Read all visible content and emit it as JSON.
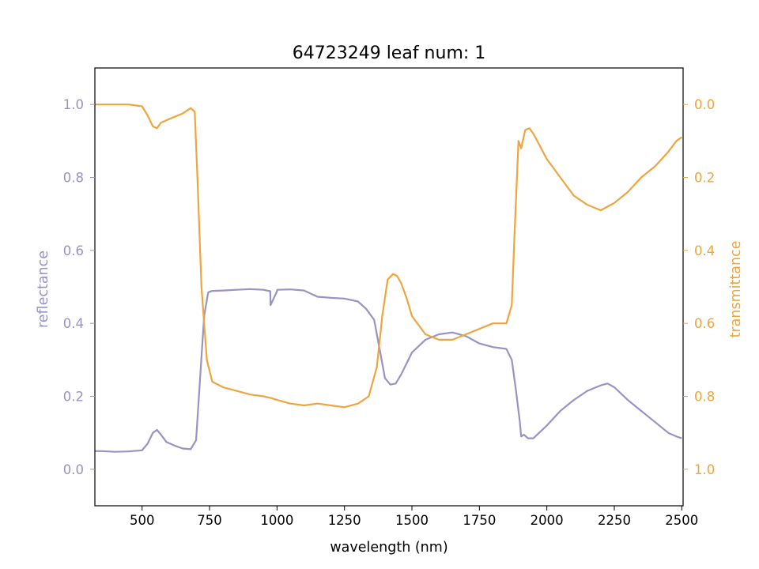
{
  "chart_data": {
    "type": "line",
    "title": "64723249 leaf num: 1",
    "xlabel": "wavelength (nm)",
    "ylabel_left": "reflectance",
    "ylabel_right": "transmittance",
    "xlim": [
      325,
      2505
    ],
    "ylim_left": [
      -0.1,
      1.1
    ],
    "ylim_right": [
      1.1,
      -0.1
    ],
    "right_axis_inverted": true,
    "grid": false,
    "x_ticks": [
      500,
      750,
      1000,
      1250,
      1500,
      1750,
      2000,
      2250,
      2500
    ],
    "y_ticks_left": [
      "0.0",
      "0.2",
      "0.4",
      "0.6",
      "0.8",
      "1.0"
    ],
    "y_ticks_right": [
      "0.0",
      "0.2",
      "0.4",
      "0.6",
      "0.8",
      "1.0"
    ],
    "colors": {
      "reflectance": "#9893c5",
      "transmittance": "#eda53f",
      "axis": "#000000"
    },
    "series": [
      {
        "axis": "left",
        "x": [
          325,
          350,
          400,
          450,
          500,
          520,
          540,
          555,
          570,
          590,
          620,
          650,
          680,
          700,
          715,
          730,
          745,
          760,
          800,
          850,
          900,
          950,
          975,
          976,
          1000,
          1001,
          1050,
          1100,
          1150,
          1200,
          1250,
          1300,
          1330,
          1360,
          1380,
          1400,
          1420,
          1440,
          1460,
          1480,
          1500,
          1550,
          1600,
          1650,
          1700,
          1750,
          1800,
          1850,
          1870,
          1885,
          1900,
          1905,
          1915,
          1930,
          1950,
          2000,
          2050,
          2100,
          2150,
          2200,
          2225,
          2250,
          2300,
          2350,
          2400,
          2450,
          2480,
          2500
        ],
        "y": [
          0.05,
          0.05,
          0.048,
          0.049,
          0.052,
          0.07,
          0.1,
          0.108,
          0.095,
          0.075,
          0.065,
          0.057,
          0.055,
          0.08,
          0.25,
          0.42,
          0.485,
          0.489,
          0.49,
          0.492,
          0.494,
          0.492,
          0.488,
          0.45,
          0.488,
          0.492,
          0.493,
          0.49,
          0.473,
          0.47,
          0.468,
          0.46,
          0.44,
          0.41,
          0.33,
          0.25,
          0.232,
          0.235,
          0.26,
          0.29,
          0.32,
          0.355,
          0.37,
          0.375,
          0.365,
          0.345,
          0.335,
          0.33,
          0.3,
          0.22,
          0.13,
          0.09,
          0.095,
          0.085,
          0.085,
          0.12,
          0.16,
          0.19,
          0.215,
          0.23,
          0.235,
          0.225,
          0.19,
          0.16,
          0.13,
          0.1,
          0.09,
          0.085
        ]
      },
      {
        "axis": "right",
        "x": [
          325,
          350,
          400,
          450,
          500,
          520,
          540,
          555,
          570,
          600,
          650,
          680,
          695,
          705,
          720,
          740,
          760,
          800,
          850,
          900,
          950,
          980,
          1000,
          1050,
          1100,
          1150,
          1200,
          1250,
          1300,
          1340,
          1370,
          1390,
          1410,
          1430,
          1445,
          1460,
          1480,
          1500,
          1550,
          1600,
          1650,
          1700,
          1750,
          1800,
          1850,
          1870,
          1880,
          1895,
          1905,
          1920,
          1935,
          1950,
          2000,
          2050,
          2100,
          2150,
          2200,
          2225,
          2250,
          2300,
          2350,
          2400,
          2450,
          2480,
          2500
        ],
        "y": [
          0.0,
          0.0,
          0.0,
          0.0,
          0.005,
          0.03,
          0.06,
          0.065,
          0.05,
          0.04,
          0.025,
          0.01,
          0.02,
          0.2,
          0.5,
          0.7,
          0.76,
          0.775,
          0.785,
          0.795,
          0.8,
          0.805,
          0.81,
          0.82,
          0.825,
          0.82,
          0.825,
          0.83,
          0.82,
          0.8,
          0.72,
          0.58,
          0.48,
          0.465,
          0.47,
          0.49,
          0.53,
          0.58,
          0.63,
          0.645,
          0.645,
          0.63,
          0.615,
          0.6,
          0.6,
          0.55,
          0.36,
          0.1,
          0.12,
          0.07,
          0.065,
          0.08,
          0.15,
          0.2,
          0.25,
          0.275,
          0.29,
          0.28,
          0.27,
          0.24,
          0.2,
          0.17,
          0.13,
          0.1,
          0.09
        ]
      }
    ]
  }
}
